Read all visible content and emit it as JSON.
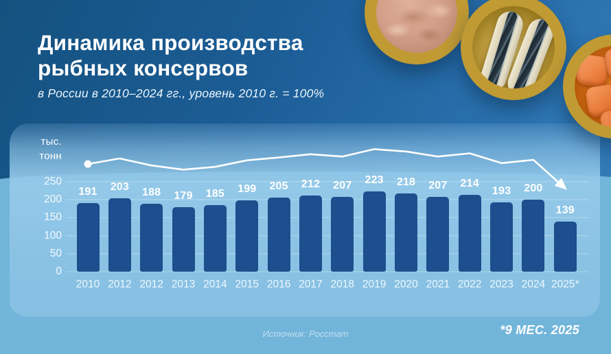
{
  "header": {
    "title_line1": "Динамика производства",
    "title_line2": "рыбных консервов",
    "subtitle": "в России в 2010–2024 гг., уровень 2010 г. = 100%"
  },
  "y_axis_unit": {
    "line1": "тыс.",
    "line2": "тонн"
  },
  "chart_data": {
    "type": "bar",
    "title": "Динамика производства рыбных консервов",
    "subtitle": "в России в 2010–2024 гг., уровень 2010 г. = 100%",
    "ylabel": "тыс. тонн",
    "categories": [
      "2010",
      "2012",
      "2012",
      "2013",
      "2014",
      "2015",
      "2016",
      "2017",
      "2018",
      "2019",
      "2020",
      "2021",
      "2022",
      "2023",
      "2024",
      "2025*"
    ],
    "values": [
      191,
      203,
      188,
      179,
      185,
      199,
      205,
      212,
      207,
      223,
      218,
      207,
      214,
      193,
      200,
      139
    ],
    "y_ticks": [
      250,
      200,
      150,
      100,
      50,
      0
    ],
    "ylim": [
      0,
      250
    ],
    "grid": true,
    "bar_color": "#1d4e8e",
    "trend_line": {
      "color": "#ffffff",
      "follows_bar_values": true,
      "start_marker": "dot",
      "end_marker": "arrow"
    }
  },
  "footer": {
    "source": "Источник: Росстат",
    "note": "*9 МЕС. 2025"
  },
  "decor": {
    "cans": [
      "canned-tuna-photo",
      "canned-sardines-photo",
      "canned-salmon-photo"
    ],
    "colors": {
      "bg_top_dark": "#14517f",
      "bg_top_light": "#3781bd",
      "bg_bottom": "#72b5da",
      "panel": "#8ac2e4",
      "bar": "#1d4e8e",
      "text": "#ffffff",
      "can_rim_gold": "#d7b84e"
    }
  }
}
